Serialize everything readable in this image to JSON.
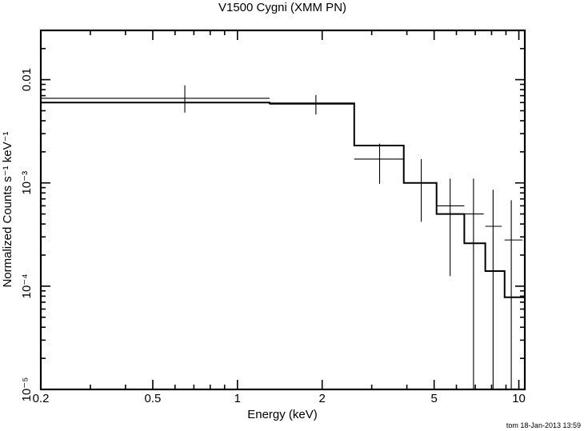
{
  "chart_data": {
    "type": "line",
    "title": "V1500 Cygni (XMM PN)",
    "xlabel": "Energy (keV)",
    "ylabel": "Normalized Counts s⁻¹ keV⁻¹",
    "xscale": "log",
    "yscale": "log",
    "xlim": [
      0.2,
      10.5
    ],
    "ylim": [
      1e-05,
      0.03
    ],
    "x_ticks": [
      {
        "value": 0.2,
        "label": "0.2"
      },
      {
        "value": 0.5,
        "label": "0.5"
      },
      {
        "value": 1,
        "label": "1"
      },
      {
        "value": 2,
        "label": "2"
      },
      {
        "value": 5,
        "label": "5"
      },
      {
        "value": 10,
        "label": "10"
      }
    ],
    "y_ticks": [
      {
        "value": 1e-05,
        "label": "10⁻⁵"
      },
      {
        "value": 0.0001,
        "label": "10⁻⁴"
      },
      {
        "value": 0.001,
        "label": "10⁻³"
      },
      {
        "value": 0.01,
        "label": "0.01"
      }
    ],
    "data_points": [
      {
        "x": 0.65,
        "x_lo": 0.2,
        "x_hi": 1.3,
        "y": 0.0066,
        "y_lo": 0.0048,
        "y_hi": 0.0088
      },
      {
        "x": 1.9,
        "x_lo": 1.3,
        "x_hi": 2.6,
        "y": 0.0058,
        "y_lo": 0.0046,
        "y_hi": 0.0071
      },
      {
        "x": 3.2,
        "x_lo": 2.6,
        "x_hi": 3.9,
        "y": 0.0017,
        "y_lo": 0.00098,
        "y_hi": 0.0024
      },
      {
        "x": 4.5,
        "x_lo": 3.9,
        "x_hi": 5.1,
        "y": 0.001,
        "y_lo": 0.00042,
        "y_hi": 0.0017
      },
      {
        "x": 5.7,
        "x_lo": 5.1,
        "x_hi": 6.4,
        "y": 0.0006,
        "y_lo": 0.000125,
        "y_hi": 0.0011
      },
      {
        "x": 6.9,
        "x_lo": 6.4,
        "x_hi": 7.5,
        "y": 0.0005,
        "y_lo": 1e-05,
        "y_hi": 0.0011
      },
      {
        "x": 8.1,
        "x_lo": 7.6,
        "x_hi": 8.7,
        "y": 0.00038,
        "y_lo": 1e-05,
        "y_hi": 0.00086
      },
      {
        "x": 9.4,
        "x_lo": 8.9,
        "x_hi": 10.3,
        "y": 0.00028,
        "y_lo": 1e-05,
        "y_hi": 0.00068
      }
    ],
    "model_steps": [
      {
        "x_lo": 0.2,
        "x_hi": 1.3,
        "y": 0.006
      },
      {
        "x_lo": 1.3,
        "x_hi": 2.6,
        "y": 0.0059
      },
      {
        "x_lo": 2.6,
        "x_hi": 3.9,
        "y": 0.0023
      },
      {
        "x_lo": 3.9,
        "x_hi": 5.1,
        "y": 0.001
      },
      {
        "x_lo": 5.1,
        "x_hi": 6.4,
        "y": 0.0005
      },
      {
        "x_lo": 6.4,
        "x_hi": 7.6,
        "y": 0.00026
      },
      {
        "x_lo": 7.6,
        "x_hi": 8.9,
        "y": 0.00014
      },
      {
        "x_lo": 8.9,
        "x_hi": 10.5,
        "y": 7.8e-05
      }
    ],
    "grid": false,
    "legend": "none"
  },
  "footer": {
    "timestamp": "tom 18-Jan-2013 13:59"
  }
}
